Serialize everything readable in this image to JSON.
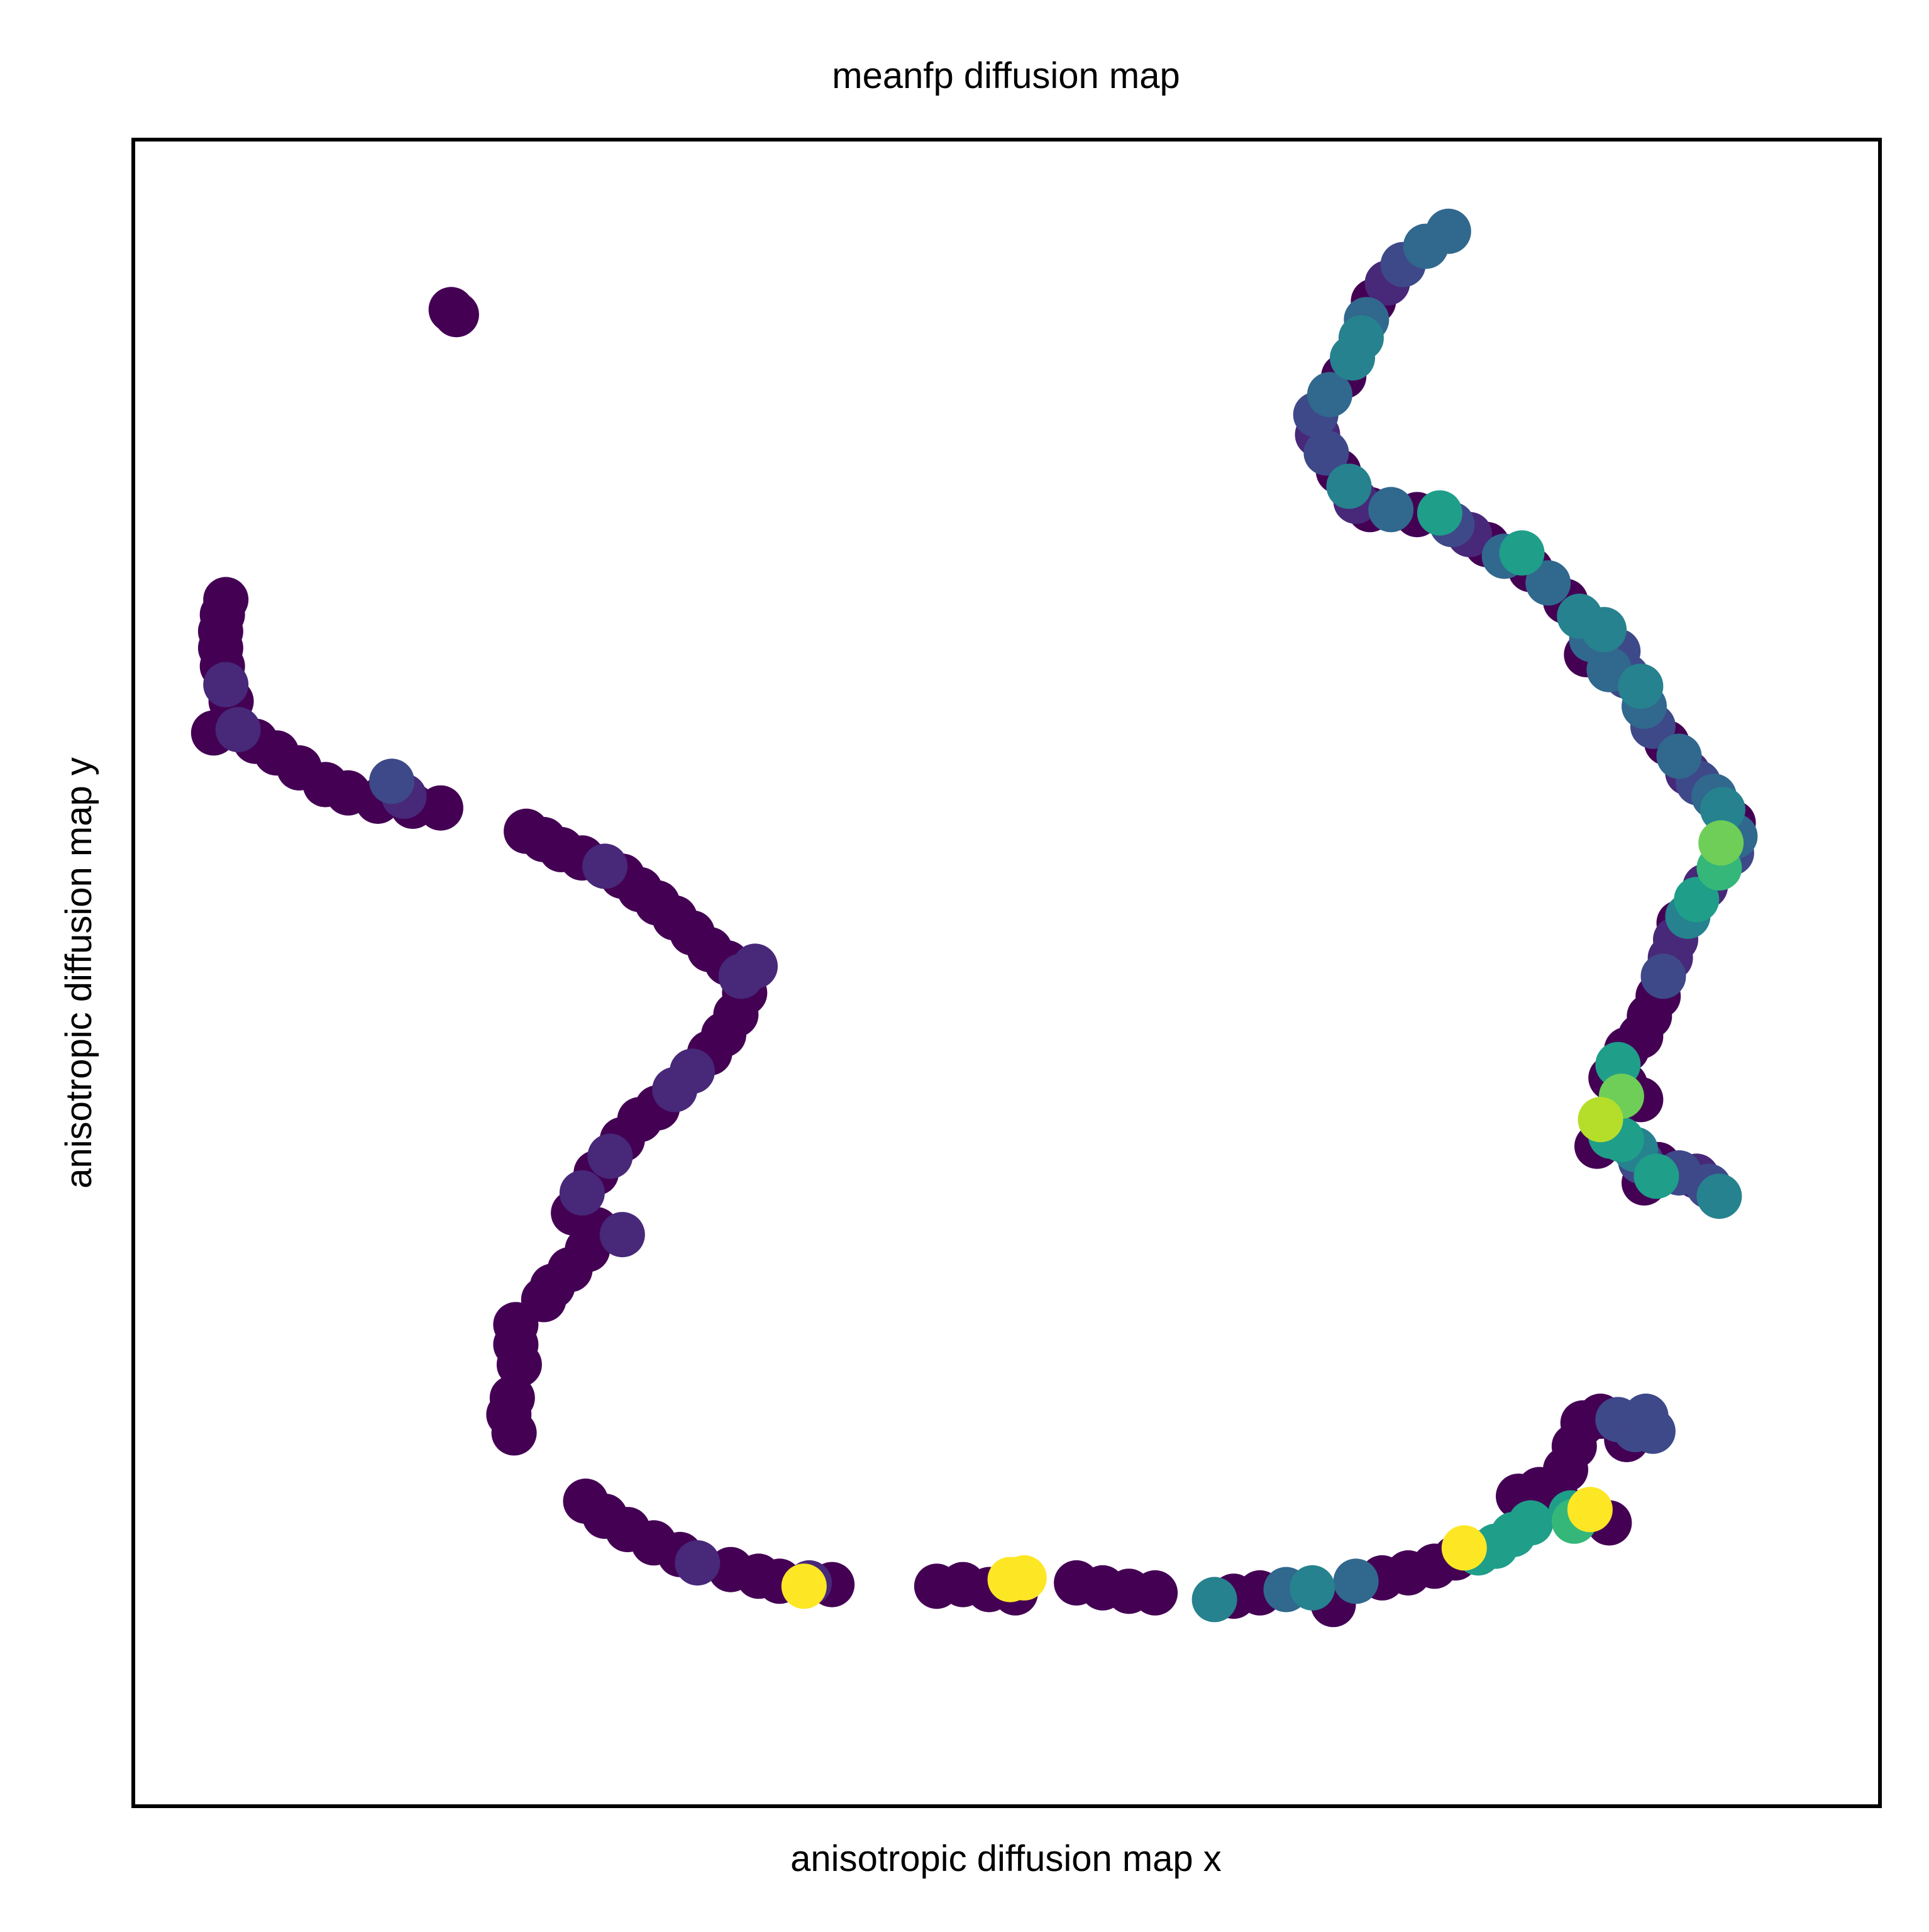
{
  "chart_data": {
    "type": "scatter",
    "title": "meanfp diffusion map",
    "xlabel": "anisotropic diffusion map x",
    "ylabel": "anisotropic diffusion map y",
    "xlim": [
      0,
      100
    ],
    "ylim": [
      0,
      100
    ],
    "grid": false,
    "legend": "none",
    "ticks": "hidden",
    "colormap": "viridis",
    "color_scale": [
      0,
      1
    ],
    "palette": [
      "#440154",
      "#482878",
      "#3e4989",
      "#31688e",
      "#26828e",
      "#1f9e89",
      "#35b779",
      "#6ece58",
      "#b5de2b",
      "#fde725"
    ],
    "points": [
      {
        "x": 18.2,
        "y": 89.8,
        "c": 0
      },
      {
        "x": 18.5,
        "y": 89.5,
        "c": 0
      },
      {
        "x": 5.3,
        "y": 72.4,
        "c": 0
      },
      {
        "x": 5.1,
        "y": 71.5,
        "c": 0
      },
      {
        "x": 5.0,
        "y": 70.5,
        "c": 0
      },
      {
        "x": 5.0,
        "y": 69.5,
        "c": 0
      },
      {
        "x": 5.1,
        "y": 68.4,
        "c": 0
      },
      {
        "x": 5.3,
        "y": 67.3,
        "c": 0.08
      },
      {
        "x": 5.6,
        "y": 66.3,
        "c": 0.05
      },
      {
        "x": 4.6,
        "y": 64.4,
        "c": 0
      },
      {
        "x": 6.0,
        "y": 64.6,
        "c": 0.08
      },
      {
        "x": 7.0,
        "y": 63.9,
        "c": 0
      },
      {
        "x": 8.2,
        "y": 63.2,
        "c": 0
      },
      {
        "x": 9.5,
        "y": 62.3,
        "c": 0
      },
      {
        "x": 11.0,
        "y": 61.3,
        "c": 0
      },
      {
        "x": 12.3,
        "y": 60.8,
        "c": 0
      },
      {
        "x": 14.8,
        "y": 61.5,
        "c": 0.2
      },
      {
        "x": 14.0,
        "y": 60.3,
        "c": 0
      },
      {
        "x": 15.5,
        "y": 60.6,
        "c": 0.12
      },
      {
        "x": 16.0,
        "y": 60.0,
        "c": 0
      },
      {
        "x": 17.6,
        "y": 59.9,
        "c": 0
      },
      {
        "x": 22.5,
        "y": 58.5,
        "c": 0
      },
      {
        "x": 23.5,
        "y": 58.0,
        "c": 0
      },
      {
        "x": 24.5,
        "y": 57.4,
        "c": 0
      },
      {
        "x": 25.7,
        "y": 56.9,
        "c": 0.05
      },
      {
        "x": 27.0,
        "y": 56.4,
        "c": 0.1
      },
      {
        "x": 28.0,
        "y": 55.8,
        "c": 0.03
      },
      {
        "x": 29.0,
        "y": 55.0,
        "c": 0
      },
      {
        "x": 30.0,
        "y": 54.2,
        "c": 0
      },
      {
        "x": 31.0,
        "y": 53.3,
        "c": 0
      },
      {
        "x": 32.0,
        "y": 52.4,
        "c": 0
      },
      {
        "x": 33.0,
        "y": 51.4,
        "c": 0
      },
      {
        "x": 34.0,
        "y": 50.6,
        "c": 0
      },
      {
        "x": 34.8,
        "y": 49.8,
        "c": 0.15
      },
      {
        "x": 35.6,
        "y": 50.4,
        "c": 0.15
      },
      {
        "x": 35.0,
        "y": 48.8,
        "c": 0.05
      },
      {
        "x": 34.5,
        "y": 47.5,
        "c": 0
      },
      {
        "x": 33.8,
        "y": 46.3,
        "c": 0
      },
      {
        "x": 33.0,
        "y": 45.2,
        "c": 0.03
      },
      {
        "x": 32.0,
        "y": 44.1,
        "c": 0.08
      },
      {
        "x": 31.0,
        "y": 43.0,
        "c": 0.1
      },
      {
        "x": 30.0,
        "y": 41.9,
        "c": 0.05
      },
      {
        "x": 29.0,
        "y": 41.2,
        "c": 0
      },
      {
        "x": 28.0,
        "y": 40.0,
        "c": 0.05
      },
      {
        "x": 27.3,
        "y": 39.0,
        "c": 0.1
      },
      {
        "x": 26.5,
        "y": 38.0,
        "c": 0
      },
      {
        "x": 25.7,
        "y": 36.8,
        "c": 0.1
      },
      {
        "x": 25.2,
        "y": 35.6,
        "c": 0
      },
      {
        "x": 28.0,
        "y": 34.3,
        "c": 0.12
      },
      {
        "x": 26.5,
        "y": 34.6,
        "c": 0
      },
      {
        "x": 26.0,
        "y": 33.4,
        "c": 0
      },
      {
        "x": 25.0,
        "y": 32.2,
        "c": 0
      },
      {
        "x": 24.0,
        "y": 31.2,
        "c": 0
      },
      {
        "x": 23.5,
        "y": 30.4,
        "c": 0
      },
      {
        "x": 21.9,
        "y": 28.9,
        "c": 0
      },
      {
        "x": 21.9,
        "y": 27.7,
        "c": 0
      },
      {
        "x": 22.1,
        "y": 26.5,
        "c": 0
      },
      {
        "x": 21.7,
        "y": 24.5,
        "c": 0
      },
      {
        "x": 21.5,
        "y": 23.5,
        "c": 0
      },
      {
        "x": 21.8,
        "y": 22.4,
        "c": 0
      },
      {
        "x": 25.9,
        "y": 18.3,
        "c": 0
      },
      {
        "x": 27.0,
        "y": 17.4,
        "c": 0
      },
      {
        "x": 28.3,
        "y": 16.6,
        "c": 0
      },
      {
        "x": 29.8,
        "y": 15.8,
        "c": 0
      },
      {
        "x": 31.3,
        "y": 15.1,
        "c": 0
      },
      {
        "x": 32.3,
        "y": 14.6,
        "c": 0.1
      },
      {
        "x": 34.2,
        "y": 14.2,
        "c": 0
      },
      {
        "x": 35.8,
        "y": 13.8,
        "c": 0
      },
      {
        "x": 37.0,
        "y": 13.5,
        "c": 0
      },
      {
        "x": 38.7,
        "y": 13.4,
        "c": 0.1
      },
      {
        "x": 40.0,
        "y": 13.3,
        "c": 0
      },
      {
        "x": 38.4,
        "y": 13.2,
        "c": 1
      },
      {
        "x": 46.0,
        "y": 13.2,
        "c": 0
      },
      {
        "x": 47.5,
        "y": 13.3,
        "c": 0
      },
      {
        "x": 49.0,
        "y": 13.0,
        "c": 0
      },
      {
        "x": 50.2,
        "y": 13.6,
        "c": 1
      },
      {
        "x": 51.0,
        "y": 13.7,
        "c": 1
      },
      {
        "x": 50.5,
        "y": 12.8,
        "c": 0
      },
      {
        "x": 54.0,
        "y": 13.4,
        "c": 0
      },
      {
        "x": 55.5,
        "y": 13.1,
        "c": 0
      },
      {
        "x": 57.0,
        "y": 12.9,
        "c": 0
      },
      {
        "x": 58.5,
        "y": 12.8,
        "c": 0
      },
      {
        "x": 61.9,
        "y": 12.4,
        "c": 0.45
      },
      {
        "x": 63.0,
        "y": 12.6,
        "c": 0
      },
      {
        "x": 64.5,
        "y": 12.8,
        "c": 0
      },
      {
        "x": 66.0,
        "y": 13.0,
        "c": 0.3
      },
      {
        "x": 67.5,
        "y": 13.1,
        "c": 0.4
      },
      {
        "x": 68.7,
        "y": 12.1,
        "c": 0
      },
      {
        "x": 70.0,
        "y": 13.5,
        "c": 0.3
      },
      {
        "x": 71.5,
        "y": 13.7,
        "c": 0
      },
      {
        "x": 73.0,
        "y": 14.0,
        "c": 0
      },
      {
        "x": 74.5,
        "y": 14.4,
        "c": 0
      },
      {
        "x": 75.7,
        "y": 14.9,
        "c": 0
      },
      {
        "x": 77.0,
        "y": 15.2,
        "c": 0.5
      },
      {
        "x": 78.0,
        "y": 15.6,
        "c": 0.55
      },
      {
        "x": 79.0,
        "y": 16.3,
        "c": 0.55
      },
      {
        "x": 80.0,
        "y": 17.0,
        "c": 0.5
      },
      {
        "x": 79.3,
        "y": 18.6,
        "c": 0
      },
      {
        "x": 80.5,
        "y": 19.0,
        "c": 0
      },
      {
        "x": 81.5,
        "y": 18.4,
        "c": 0
      },
      {
        "x": 76.2,
        "y": 15.5,
        "c": 1
      },
      {
        "x": 83.4,
        "y": 17.8,
        "c": 1
      },
      {
        "x": 82.3,
        "y": 17.6,
        "c": 0.5
      },
      {
        "x": 82.5,
        "y": 17.1,
        "c": 0.65
      },
      {
        "x": 84.5,
        "y": 17.0,
        "c": 0
      },
      {
        "x": 82.0,
        "y": 20.2,
        "c": 0
      },
      {
        "x": 82.5,
        "y": 21.6,
        "c": 0
      },
      {
        "x": 83.0,
        "y": 23.0,
        "c": 0
      },
      {
        "x": 84.0,
        "y": 23.4,
        "c": 0
      },
      {
        "x": 85.0,
        "y": 23.2,
        "c": 0.2
      },
      {
        "x": 86.0,
        "y": 22.6,
        "c": 0.2
      },
      {
        "x": 87.0,
        "y": 22.5,
        "c": 0.25
      },
      {
        "x": 85.5,
        "y": 22.0,
        "c": 0
      },
      {
        "x": 86.6,
        "y": 23.4,
        "c": 0.2
      },
      {
        "x": 75.3,
        "y": 94.5,
        "c": 0.3
      },
      {
        "x": 74.0,
        "y": 93.6,
        "c": 0.35
      },
      {
        "x": 72.7,
        "y": 92.5,
        "c": 0.2
      },
      {
        "x": 71.8,
        "y": 91.4,
        "c": 0.1
      },
      {
        "x": 71.0,
        "y": 90.3,
        "c": 0
      },
      {
        "x": 70.6,
        "y": 89.2,
        "c": 0.35
      },
      {
        "x": 70.3,
        "y": 88.1,
        "c": 0.4
      },
      {
        "x": 69.8,
        "y": 86.9,
        "c": 0.45
      },
      {
        "x": 69.3,
        "y": 85.8,
        "c": 0
      },
      {
        "x": 68.5,
        "y": 84.7,
        "c": 0.3
      },
      {
        "x": 67.7,
        "y": 83.5,
        "c": 0.2
      },
      {
        "x": 67.8,
        "y": 82.3,
        "c": 0.1
      },
      {
        "x": 68.3,
        "y": 81.2,
        "c": 0.2
      },
      {
        "x": 69.0,
        "y": 80.1,
        "c": 0.05
      },
      {
        "x": 69.6,
        "y": 79.2,
        "c": 0.4
      },
      {
        "x": 70.0,
        "y": 78.3,
        "c": 0.1
      },
      {
        "x": 70.8,
        "y": 77.8,
        "c": 0
      },
      {
        "x": 72.0,
        "y": 77.8,
        "c": 0.3
      },
      {
        "x": 73.5,
        "y": 77.5,
        "c": 0
      },
      {
        "x": 74.8,
        "y": 77.6,
        "c": 0.5
      },
      {
        "x": 75.5,
        "y": 76.9,
        "c": 0.2
      },
      {
        "x": 76.5,
        "y": 76.3,
        "c": 0.15
      },
      {
        "x": 77.5,
        "y": 75.7,
        "c": 0
      },
      {
        "x": 78.5,
        "y": 75.0,
        "c": 0.35
      },
      {
        "x": 79.5,
        "y": 75.2,
        "c": 0.5
      },
      {
        "x": 80.0,
        "y": 74.2,
        "c": 0
      },
      {
        "x": 81.0,
        "y": 73.4,
        "c": 0.3
      },
      {
        "x": 82.0,
        "y": 72.3,
        "c": 0
      },
      {
        "x": 82.8,
        "y": 71.4,
        "c": 0.45
      },
      {
        "x": 83.5,
        "y": 70.0,
        "c": 0.35
      },
      {
        "x": 84.2,
        "y": 70.6,
        "c": 0.4
      },
      {
        "x": 85.0,
        "y": 69.3,
        "c": 0.2
      },
      {
        "x": 83.2,
        "y": 69.1,
        "c": 0
      },
      {
        "x": 84.5,
        "y": 68.2,
        "c": 0.3
      },
      {
        "x": 85.5,
        "y": 67.8,
        "c": 0.2
      },
      {
        "x": 86.3,
        "y": 67.2,
        "c": 0.45
      },
      {
        "x": 86.5,
        "y": 66.0,
        "c": 0.3
      },
      {
        "x": 87.0,
        "y": 64.8,
        "c": 0.25
      },
      {
        "x": 87.8,
        "y": 63.8,
        "c": 0
      },
      {
        "x": 88.5,
        "y": 63.0,
        "c": 0.35
      },
      {
        "x": 89.0,
        "y": 62.0,
        "c": 0.1
      },
      {
        "x": 89.6,
        "y": 61.4,
        "c": 0.2
      },
      {
        "x": 90.5,
        "y": 60.6,
        "c": 0.3
      },
      {
        "x": 91.0,
        "y": 59.8,
        "c": 0.4
      },
      {
        "x": 91.6,
        "y": 59.0,
        "c": 0
      },
      {
        "x": 91.7,
        "y": 58.2,
        "c": 0.3
      },
      {
        "x": 90.9,
        "y": 57.8,
        "c": 0.75
      },
      {
        "x": 91.5,
        "y": 57.2,
        "c": 0.2
      },
      {
        "x": 90.8,
        "y": 56.3,
        "c": 0.7
      },
      {
        "x": 90.0,
        "y": 55.2,
        "c": 0.15
      },
      {
        "x": 89.5,
        "y": 54.4,
        "c": 0.5
      },
      {
        "x": 89.0,
        "y": 53.4,
        "c": 0.4
      },
      {
        "x": 88.5,
        "y": 53.0,
        "c": 0
      },
      {
        "x": 88.3,
        "y": 52.0,
        "c": 0.1
      },
      {
        "x": 88.0,
        "y": 50.9,
        "c": 0.1
      },
      {
        "x": 87.6,
        "y": 49.8,
        "c": 0.2
      },
      {
        "x": 87.3,
        "y": 48.6,
        "c": 0
      },
      {
        "x": 86.8,
        "y": 47.4,
        "c": 0.05
      },
      {
        "x": 86.3,
        "y": 46.2,
        "c": 0
      },
      {
        "x": 85.5,
        "y": 45.4,
        "c": 0
      },
      {
        "x": 85.0,
        "y": 44.5,
        "c": 0.5
      },
      {
        "x": 84.6,
        "y": 43.7,
        "c": 0
      },
      {
        "x": 85.4,
        "y": 43.3,
        "c": 0
      },
      {
        "x": 85.2,
        "y": 42.6,
        "c": 0.8
      },
      {
        "x": 86.3,
        "y": 42.4,
        "c": 0
      },
      {
        "x": 84.0,
        "y": 41.2,
        "c": 0.9
      },
      {
        "x": 84.5,
        "y": 40.8,
        "c": 0
      },
      {
        "x": 85.2,
        "y": 40.0,
        "c": 0.6
      },
      {
        "x": 84.6,
        "y": 40.2,
        "c": 0.5
      },
      {
        "x": 83.8,
        "y": 39.6,
        "c": 0
      },
      {
        "x": 86.0,
        "y": 39.4,
        "c": 0.45
      },
      {
        "x": 86.3,
        "y": 38.7,
        "c": 0.2
      },
      {
        "x": 87.3,
        "y": 38.5,
        "c": 0
      },
      {
        "x": 87.2,
        "y": 37.8,
        "c": 0.5
      },
      {
        "x": 86.5,
        "y": 37.4,
        "c": 0
      },
      {
        "x": 88.5,
        "y": 38.0,
        "c": 0.2
      },
      {
        "x": 89.5,
        "y": 37.8,
        "c": 0.15
      },
      {
        "x": 90.2,
        "y": 37.2,
        "c": 0.2
      },
      {
        "x": 90.8,
        "y": 36.6,
        "c": 0.45
      }
    ]
  }
}
